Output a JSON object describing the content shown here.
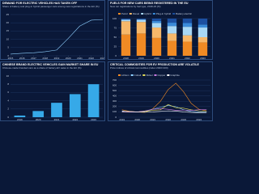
{
  "chart_data": [
    {
      "type": "line",
      "title": "DEMAND FOR ELECTRIC VEHICLES HAS TAKEN OFF",
      "subtitle": "Share of battery and plug-in hybrid passenger cars among new registrations in the EU (%)",
      "x": [
        2015,
        2016,
        2017,
        2018,
        2019,
        2020,
        2021,
        2022,
        2023
      ],
      "xlim": [
        2015,
        2023
      ],
      "xticks": [
        2015,
        2016,
        2017,
        2018,
        2019,
        2020,
        2021,
        2022,
        2023
      ],
      "series": [
        {
          "name": "EV share",
          "color": "#8fd0ff",
          "values": [
            1,
            1.5,
            1.8,
            2.5,
            3.5,
            10.5,
            18,
            21.6,
            22
          ]
        }
      ],
      "ylim": [
        0,
        25
      ],
      "yticks": [
        0,
        5,
        10,
        15,
        20,
        25
      ],
      "grid": true
    },
    {
      "type": "stacked-bar",
      "title": "FUELS FOR NEW CARS BEING REGISTERED IN THE EU",
      "subtitle": "New car registrations by fuel type, 2018-23 (%)",
      "categories": [
        "2018",
        "2019",
        "2020",
        "2021",
        "2022",
        "2023"
      ],
      "series": [
        {
          "name": "Petrol",
          "color": "#f08a24",
          "values": [
            57,
            60,
            48,
            40,
            38,
            36
          ]
        },
        {
          "name": "Diesel",
          "color": "#f7b86a",
          "values": [
            36,
            31,
            28,
            20,
            17,
            14
          ]
        },
        {
          "name": "Hybrid",
          "color": "#a9d8f5",
          "values": [
            4,
            6,
            12,
            20,
            23,
            26
          ]
        },
        {
          "name": "Plug-in hybrid",
          "color": "#3a8ad8",
          "values": [
            1,
            1,
            6,
            9,
            10,
            8
          ]
        },
        {
          "name": "Battery electric",
          "color": "#1c4fa0",
          "values": [
            2,
            2,
            6,
            11,
            12,
            16
          ]
        }
      ],
      "ylim": [
        0,
        100
      ],
      "yticks": [
        0,
        25,
        50,
        75,
        100
      ],
      "grid": true
    },
    {
      "type": "bar",
      "title": "CHINESE BRAND ELECTRIC VEHICLES GAIN MARKET SHARE IN EU",
      "subtitle": "Chinese-made branded cars as a share of battery-EV sales in the EU (%)",
      "categories": [
        "2019",
        "2020",
        "2021",
        "2022",
        "2023"
      ],
      "values": [
        0.4,
        1.5,
        3.5,
        5.6,
        8
      ],
      "color": "#36a9e8",
      "ylim": [
        0,
        10
      ],
      "yticks": [
        0,
        2,
        4,
        6,
        8,
        10
      ],
      "grid": true
    },
    {
      "type": "line",
      "title": "CRITICAL COMMODITIES FOR EV PRODUCTION ARE VOLATILE",
      "subtitle": "Price indices of critical commodities (index 2020=100)",
      "categories": [
        "2019",
        null,
        "2020",
        null,
        "2021",
        null,
        "2022",
        null,
        "2023",
        null,
        "2024",
        null
      ],
      "series": [
        {
          "name": "Lithium",
          "color": "#f08a24",
          "values": [
            140,
            110,
            100,
            90,
            160,
            300,
            520,
            640,
            480,
            260,
            150,
            120
          ]
        },
        {
          "name": "Cobalt",
          "color": "#8fd0ff",
          "values": [
            120,
            95,
            100,
            110,
            150,
            190,
            220,
            200,
            140,
            110,
            100,
            95
          ]
        },
        {
          "name": "Nickel",
          "color": "#e5e05a",
          "values": [
            95,
            105,
            100,
            110,
            130,
            140,
            240,
            180,
            170,
            140,
            120,
            110
          ]
        },
        {
          "name": "Copper",
          "color": "#c77be0",
          "values": [
            100,
            95,
            100,
            120,
            150,
            160,
            150,
            130,
            135,
            130,
            140,
            145
          ]
        },
        {
          "name": "Graphite",
          "color": "#ffffff",
          "values": [
            110,
            105,
            100,
            95,
            100,
            110,
            120,
            115,
            100,
            90,
            85,
            80
          ]
        }
      ],
      "ylim": [
        0,
        700
      ],
      "yticks": [
        0,
        100,
        200,
        300,
        400,
        500,
        600,
        700
      ],
      "grid": true
    }
  ]
}
